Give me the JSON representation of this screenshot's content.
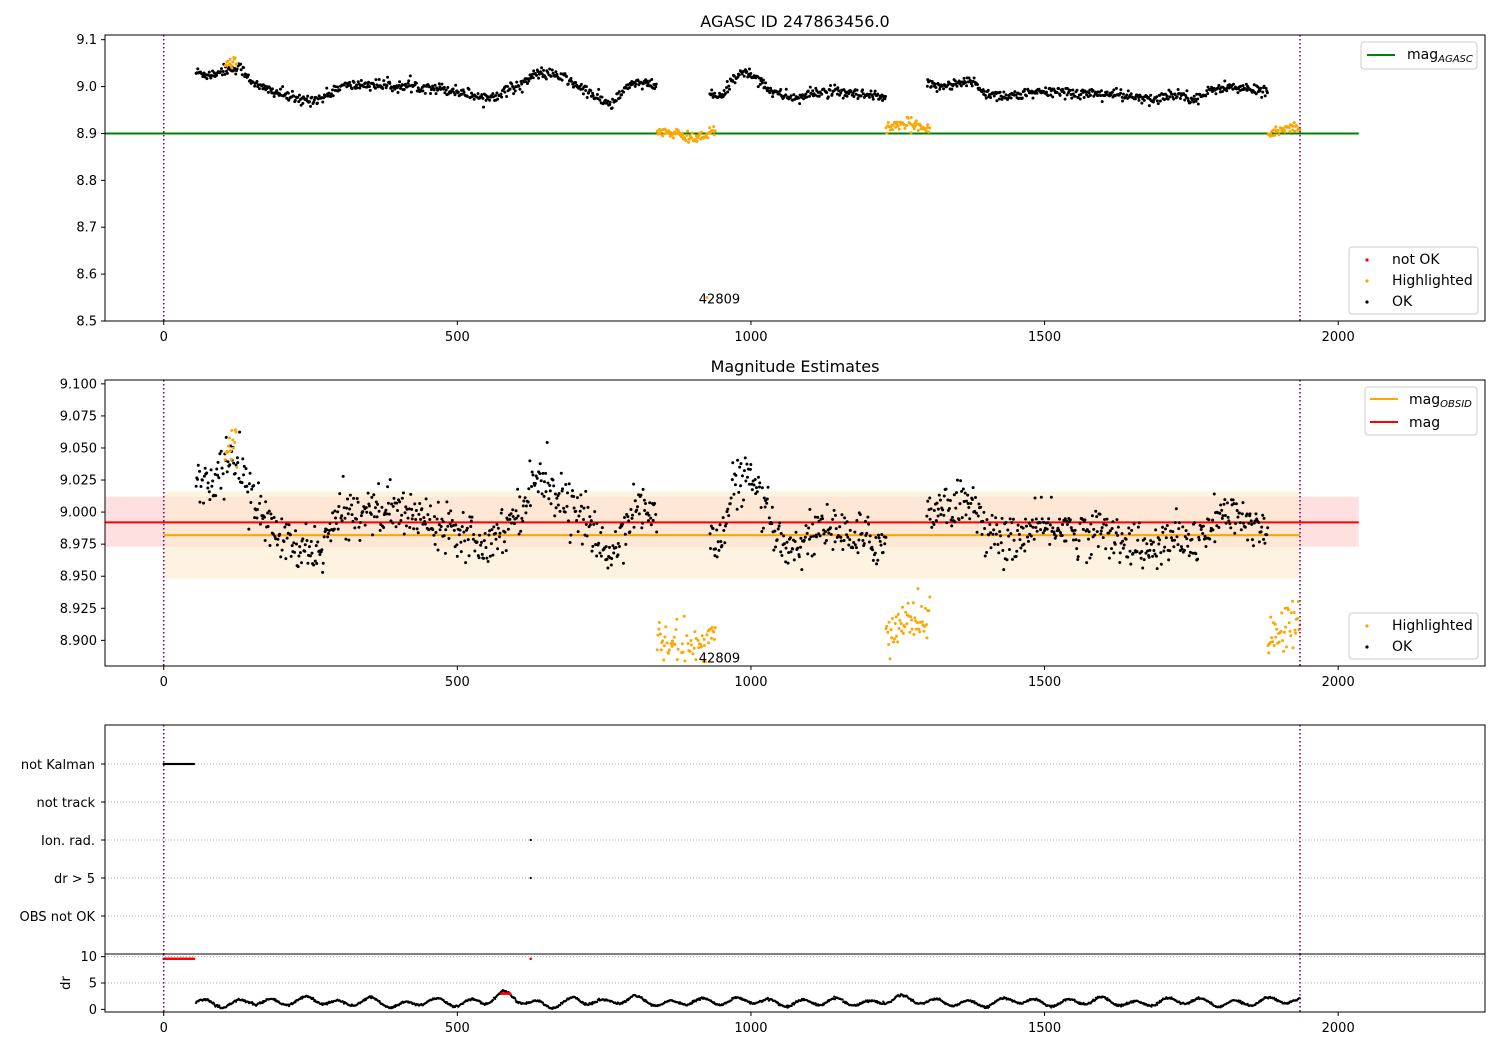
{
  "colors": {
    "ok": "#000000",
    "highlighted": "#ffa500",
    "not_ok": "#ff0000",
    "mag_agasc": "#008000",
    "mag_obsid": "#ffa500",
    "mag": "#ff0000",
    "vline": "#800080",
    "band_mag": "#ffcccc",
    "band_obsid": "#fdebcc",
    "grid": "#b0b0b0"
  },
  "chart_data": [
    {
      "type": "scatter",
      "title": "AGASC ID 247863456.0",
      "xlim": [
        -100,
        2250
      ],
      "ylim": [
        8.5,
        9.11
      ],
      "x_ticks": [
        0,
        500,
        1000,
        1500,
        2000
      ],
      "y_ticks": [
        "8.5",
        "8.6",
        "8.7",
        "8.8",
        "8.9",
        "9.0",
        "9.1"
      ],
      "vlines": [
        0,
        1935
      ],
      "hlines": [
        {
          "name": "mag_AGASC",
          "y": 8.9,
          "x": [
            -100,
            2035
          ],
          "color_key": "mag_agasc"
        }
      ],
      "annotation": {
        "text": "42809",
        "x": 960,
        "y": 8.52
      },
      "legend_lines": [
        {
          "label_main": "mag",
          "label_sub": "AGASC",
          "color_key": "mag_agasc"
        }
      ],
      "legend_points": [
        {
          "label": "not OK",
          "color_key": "not_ok"
        },
        {
          "label": "Highlighted",
          "color_key": "highlighted"
        },
        {
          "label": "OK",
          "color_key": "ok"
        }
      ],
      "series": [
        {
          "name": "OK",
          "color_key": "ok",
          "segments": [
            {
              "x": [
                55,
                80,
                100,
                130,
                160,
                200,
                230,
                270,
                300,
                350,
                400,
                450,
                500,
                550,
                600,
                640,
                680,
                720,
                760,
                800,
                840
              ],
              "y": [
                9.03,
                9.025,
                9.035,
                9.04,
                9.0,
                8.985,
                8.97,
                8.975,
                9.0,
                9.005,
                9.0,
                9.0,
                8.99,
                8.975,
                9.0,
                9.03,
                9.02,
                8.99,
                8.96,
                9.01,
                9.0
              ]
            },
            {
              "x": [
                930,
                950,
                970,
                990,
                1010,
                1040,
                1080,
                1120,
                1160,
                1200,
                1230
              ],
              "y": [
                8.985,
                8.975,
                9.02,
                9.03,
                9.02,
                8.985,
                8.975,
                8.99,
                8.985,
                8.98,
                8.975
              ]
            },
            {
              "x": [
                1300,
                1340,
                1380,
                1400,
                1440,
                1480,
                1520,
                1560,
                1600,
                1640,
                1680,
                1720,
                1760,
                1800,
                1840,
                1880
              ],
              "y": [
                9.0,
                9.005,
                9.01,
                8.985,
                8.98,
                8.985,
                8.99,
                8.985,
                8.985,
                8.98,
                8.97,
                8.985,
                8.975,
                9.0,
                8.995,
                8.99
              ]
            }
          ]
        },
        {
          "name": "Highlighted",
          "color_key": "highlighted",
          "segments": [
            {
              "x": [
                105,
                115,
                125
              ],
              "y": [
                9.05,
                9.055,
                9.05
              ]
            },
            {
              "x": [
                840,
                860,
                880,
                900,
                920,
                940
              ],
              "y": [
                8.905,
                8.9,
                8.895,
                8.89,
                8.895,
                8.91
              ]
            },
            {
              "x": [
                1230,
                1250,
                1270,
                1290,
                1305
              ],
              "y": [
                8.91,
                8.915,
                8.92,
                8.915,
                8.915
              ]
            },
            {
              "x": [
                1880,
                1900,
                1920,
                1935
              ],
              "y": [
                8.9,
                8.905,
                8.915,
                8.91
              ]
            }
          ]
        }
      ]
    },
    {
      "type": "scatter",
      "title": "Magnitude Estimates",
      "xlim": [
        -100,
        2250
      ],
      "ylim": [
        8.88,
        9.103
      ],
      "x_ticks": [
        0,
        500,
        1000,
        1500,
        2000
      ],
      "y_ticks": [
        "8.900",
        "8.925",
        "8.950",
        "8.975",
        "9.000",
        "9.025",
        "9.050",
        "9.075",
        "9.100"
      ],
      "vlines": [
        0,
        1935
      ],
      "hlines": [
        {
          "name": "mag_OBSID",
          "y": 8.982,
          "x": [
            0,
            1935
          ],
          "color_key": "mag_obsid"
        },
        {
          "name": "mag",
          "y": 8.992,
          "x": [
            -100,
            2035
          ],
          "color_key": "mag"
        }
      ],
      "bands": [
        {
          "x": [
            -100,
            2035
          ],
          "y": [
            8.973,
            9.012
          ],
          "color_key": "band_mag"
        },
        {
          "x": [
            0,
            1935
          ],
          "y": [
            8.948,
            9.016
          ],
          "color_key": "band_obsid"
        }
      ],
      "annotation": {
        "text": "42809",
        "x": 960,
        "y": 8.886
      },
      "legend_lines": [
        {
          "label_main": "mag",
          "label_sub": "OBSID",
          "color_key": "mag_obsid"
        },
        {
          "label_main": "mag",
          "label_sub": "",
          "color_key": "mag"
        }
      ],
      "legend_points": [
        {
          "label": "Highlighted",
          "color_key": "highlighted"
        },
        {
          "label": "OK",
          "color_key": "ok"
        }
      ],
      "series": [
        {
          "name": "OK",
          "color_key": "ok",
          "segments": [
            {
              "x": [
                55,
                80,
                100,
                130,
                160,
                200,
                230,
                270,
                300,
                350,
                400,
                450,
                500,
                550,
                600,
                640,
                680,
                720,
                760,
                800,
                840
              ],
              "y": [
                9.028,
                9.022,
                9.035,
                9.04,
                9.0,
                8.98,
                8.968,
                8.972,
                8.998,
                9.003,
                9.0,
                8.995,
                8.988,
                8.975,
                8.998,
                9.03,
                9.01,
                8.992,
                8.963,
                9.005,
                8.995
              ]
            },
            {
              "x": [
                930,
                950,
                970,
                990,
                1010,
                1040,
                1080,
                1120,
                1160,
                1200,
                1230
              ],
              "y": [
                8.982,
                8.975,
                9.02,
                9.03,
                9.015,
                8.982,
                8.972,
                8.99,
                8.982,
                8.978,
                8.975
              ]
            },
            {
              "x": [
                1300,
                1340,
                1380,
                1400,
                1440,
                1480,
                1520,
                1560,
                1600,
                1640,
                1680,
                1720,
                1760,
                1800,
                1840,
                1880
              ],
              "y": [
                9.002,
                9.005,
                9.01,
                8.982,
                8.978,
                8.985,
                8.99,
                8.983,
                8.985,
                8.978,
                8.968,
                8.98,
                8.975,
                8.998,
                8.993,
                8.988
              ]
            }
          ]
        },
        {
          "name": "Highlighted",
          "color_key": "highlighted",
          "segments": [
            {
              "x": [
                105,
                115,
                125
              ],
              "y": [
                9.048,
                9.055,
                9.05
              ]
            },
            {
              "x": [
                840,
                860,
                880,
                900,
                920,
                940
              ],
              "y": [
                8.902,
                8.897,
                8.893,
                8.89,
                8.896,
                8.905
              ]
            },
            {
              "x": [
                1230,
                1250,
                1270,
                1290,
                1305
              ],
              "y": [
                8.905,
                8.912,
                8.918,
                8.915,
                8.917
              ]
            },
            {
              "x": [
                1880,
                1900,
                1920,
                1935
              ],
              "y": [
                8.9,
                8.905,
                8.918,
                8.91
              ]
            }
          ]
        }
      ]
    },
    {
      "type": "scatter",
      "title": "",
      "xlim": [
        -100,
        2250
      ],
      "categories": [
        "not Kalman",
        "not track",
        "Ion. rad.",
        "dr > 5",
        "OBS not OK"
      ],
      "vlines": [
        0,
        1935
      ],
      "flags": [
        {
          "category": "not Kalman",
          "x_range": [
            0,
            52
          ]
        },
        {
          "category": "Ion. rad.",
          "x": [
            625
          ]
        },
        {
          "category": "dr > 5",
          "x": [
            625
          ]
        }
      ]
    },
    {
      "type": "scatter",
      "title": "",
      "xlim": [
        -100,
        2250
      ],
      "ylim": [
        -0.5,
        10.5
      ],
      "ylabel": "dr",
      "x_ticks": [
        0,
        500,
        1000,
        1500,
        2000
      ],
      "y_ticks": [
        "0",
        "5",
        "10"
      ],
      "vlines": [
        0,
        1935
      ],
      "red_points": {
        "x_range": [
          0,
          52
        ],
        "y": 9.6,
        "extra_x": [
          625
        ]
      },
      "series": [
        {
          "name": "dr",
          "color_key": "ok",
          "x": [
            55,
            100,
            150,
            200,
            250,
            300,
            350,
            400,
            450,
            500,
            550,
            580,
            620,
            660,
            700,
            750,
            800,
            850,
            900,
            950,
            1000,
            1050,
            1100,
            1150,
            1200,
            1250,
            1300,
            1350,
            1400,
            1450,
            1500,
            1550,
            1600,
            1650,
            1700,
            1750,
            1800,
            1850,
            1900,
            1935
          ],
          "y": [
            1.5,
            0.8,
            1.6,
            1.2,
            2.0,
            1.0,
            1.8,
            0.6,
            1.7,
            1.1,
            1.6,
            3.0,
            1.3,
            0.7,
            1.8,
            1.2,
            2.1,
            0.9,
            1.6,
            1.4,
            1.8,
            1.1,
            1.3,
            1.6,
            1.0,
            2.2,
            1.5,
            1.2,
            1.0,
            1.9,
            1.1,
            1.4,
            1.8,
            0.9,
            1.5,
            1.7,
            1.0,
            1.3,
            1.9,
            1.4
          ]
        }
      ]
    }
  ]
}
